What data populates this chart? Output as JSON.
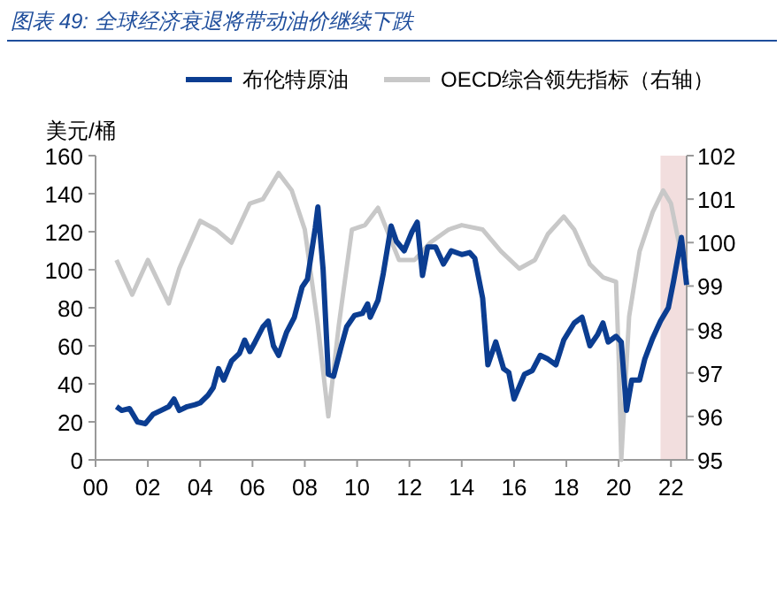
{
  "chart_data": {
    "type": "line",
    "title": "图表 49:  全球经济衰退将带动油价继续下跌",
    "ylabel": "美元/桶",
    "xlim": [
      2000,
      2022.6
    ],
    "xticks": [
      {
        "value": 2000,
        "label": "00"
      },
      {
        "value": 2002,
        "label": "02"
      },
      {
        "value": 2004,
        "label": "04"
      },
      {
        "value": 2006,
        "label": "06"
      },
      {
        "value": 2008,
        "label": "08"
      },
      {
        "value": 2010,
        "label": "10"
      },
      {
        "value": 2012,
        "label": "12"
      },
      {
        "value": 2014,
        "label": "14"
      },
      {
        "value": 2016,
        "label": "16"
      },
      {
        "value": 2018,
        "label": "18"
      },
      {
        "value": 2020,
        "label": "20"
      },
      {
        "value": 2022,
        "label": "22"
      }
    ],
    "ylim": [
      0,
      160
    ],
    "yticks": [
      0,
      20,
      40,
      60,
      80,
      100,
      120,
      140,
      160
    ],
    "y2lim": [
      95,
      102
    ],
    "y2ticks": [
      95,
      96,
      97,
      98,
      99,
      100,
      101,
      102
    ],
    "legend": "top",
    "grid": false,
    "bands": [
      {
        "axis": "x",
        "from": 2021.6,
        "to": 2022.6,
        "color": "#f2dede"
      }
    ],
    "series": [
      {
        "name": "布伦特原油",
        "color": "#0b3d91",
        "x": [
          2000.8,
          2001.0,
          2001.3,
          2001.6,
          2001.9,
          2002.2,
          2002.5,
          2002.8,
          2003.0,
          2003.2,
          2003.5,
          2003.8,
          2004.0,
          2004.3,
          2004.5,
          2004.7,
          2004.9,
          2005.2,
          2005.5,
          2005.7,
          2005.9,
          2006.1,
          2006.4,
          2006.6,
          2006.8,
          2007.0,
          2007.3,
          2007.6,
          2007.9,
          2008.1,
          2008.4,
          2008.5,
          2008.7,
          2008.9,
          2009.1,
          2009.4,
          2009.6,
          2009.9,
          2010.2,
          2010.4,
          2010.5,
          2010.8,
          2011.0,
          2011.3,
          2011.5,
          2011.8,
          2012.1,
          2012.3,
          2012.5,
          2012.7,
          2013.0,
          2013.3,
          2013.6,
          2014.0,
          2014.3,
          2014.5,
          2014.8,
          2015.0,
          2015.3,
          2015.6,
          2015.8,
          2016.0,
          2016.4,
          2016.7,
          2017.0,
          2017.3,
          2017.6,
          2017.9,
          2018.3,
          2018.6,
          2018.9,
          2019.2,
          2019.4,
          2019.6,
          2019.9,
          2020.1,
          2020.3,
          2020.5,
          2020.8,
          2021.0,
          2021.3,
          2021.6,
          2021.9,
          2022.1,
          2022.4,
          2022.6
        ],
        "values": [
          28,
          26,
          27,
          20,
          19,
          24,
          26,
          28,
          32,
          26,
          28,
          29,
          30,
          34,
          38,
          48,
          42,
          52,
          56,
          63,
          57,
          62,
          70,
          73,
          60,
          55,
          67,
          75,
          91,
          95,
          122,
          133,
          100,
          45,
          44,
          60,
          70,
          76,
          77,
          82,
          75,
          84,
          98,
          123,
          115,
          110,
          120,
          125,
          97,
          112,
          112,
          103,
          110,
          108,
          109,
          106,
          85,
          50,
          62,
          48,
          46,
          32,
          45,
          47,
          55,
          53,
          50,
          63,
          72,
          75,
          60,
          66,
          72,
          62,
          65,
          62,
          26,
          42,
          42,
          53,
          64,
          73,
          80,
          94,
          117,
          92
        ]
      },
      {
        "name": "OECD综合领先指标（右轴）",
        "color": "#c8c8c8",
        "axis": "y2",
        "x": [
          2000.8,
          2001.4,
          2002.0,
          2002.8,
          2003.2,
          2004.0,
          2004.6,
          2005.2,
          2005.9,
          2006.4,
          2007.0,
          2007.5,
          2008.0,
          2008.5,
          2008.9,
          2009.3,
          2009.8,
          2010.3,
          2010.8,
          2011.2,
          2011.6,
          2012.2,
          2012.8,
          2013.5,
          2014.0,
          2014.8,
          2015.5,
          2016.2,
          2016.8,
          2017.3,
          2017.9,
          2018.3,
          2018.9,
          2019.4,
          2019.9,
          2020.0,
          2020.1,
          2020.4,
          2020.8,
          2021.3,
          2021.7,
          2022.0,
          2022.3,
          2022.6
        ],
        "values": [
          99.6,
          98.8,
          99.6,
          98.6,
          99.4,
          100.5,
          100.3,
          100.0,
          100.9,
          101.0,
          101.6,
          101.2,
          100.3,
          98.1,
          96.0,
          98.1,
          100.3,
          100.4,
          100.8,
          100.2,
          99.6,
          99.6,
          100.0,
          100.3,
          100.4,
          100.3,
          99.8,
          99.4,
          99.6,
          100.2,
          100.6,
          100.3,
          99.5,
          99.2,
          99.1,
          97.4,
          95.0,
          98.3,
          99.8,
          100.7,
          101.2,
          100.9,
          100.0,
          99.3
        ]
      }
    ]
  }
}
